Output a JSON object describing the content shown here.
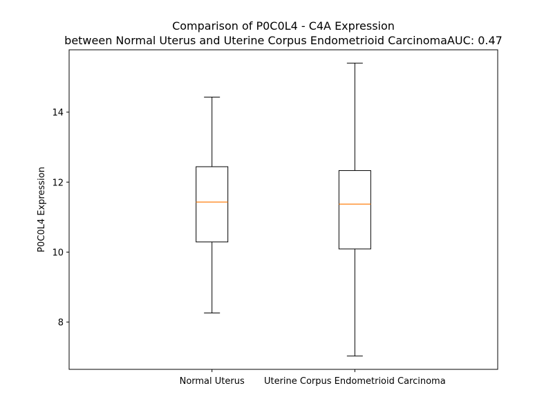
{
  "chart_data": {
    "type": "box",
    "title_lines": [
      "Comparison of P0C0L4 - C4A Expression",
      "between Normal Uterus and Uterine Corpus Endometrioid CarcinomaAUC: 0.47"
    ],
    "ylabel": "P0C0L4 Expression",
    "xlabel": "",
    "ylim": [
      6.65,
      15.78
    ],
    "yticks": [
      8,
      10,
      12,
      14
    ],
    "grid": false,
    "categories": [
      "Normal Uterus",
      "Uterine Corpus Endometrioid Carcinoma"
    ],
    "boxes": [
      {
        "category": "Normal Uterus",
        "whisker_low": 8.26,
        "q1": 10.29,
        "median": 11.43,
        "q3": 12.44,
        "whisker_high": 14.43
      },
      {
        "category": "Uterine Corpus Endometrioid Carcinoma",
        "whisker_low": 7.03,
        "q1": 10.09,
        "median": 11.37,
        "q3": 12.33,
        "whisker_high": 15.4
      }
    ],
    "colors": {
      "box": "#000000",
      "median": "#ff7f0e"
    }
  }
}
